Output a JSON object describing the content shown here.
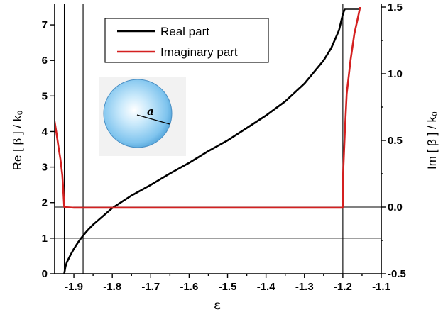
{
  "chart_data": {
    "type": "line",
    "xlabel": "ε",
    "ylabel_left": "Re [ β ] / k₀",
    "ylabel_right": "Im [ β ] / k₀",
    "xlim": [
      -1.95,
      -1.1
    ],
    "ylim_left": [
      0,
      7.5
    ],
    "ylim_right": [
      -0.5,
      1.5
    ],
    "x_ticks": [
      -1.9,
      -1.8,
      -1.7,
      -1.6,
      -1.5,
      -1.4,
      -1.3,
      -1.2,
      -1.1
    ],
    "x_tick_labels": [
      "-1.9",
      "-1.8",
      "-1.7",
      "-1.6",
      "-1.5",
      "-1.4",
      "-1.3",
      "-1.2",
      "-1.1"
    ],
    "y_left_ticks": [
      0,
      1,
      2,
      3,
      4,
      5,
      6,
      7
    ],
    "y_left_tick_labels": [
      "0",
      "1",
      "2",
      "3",
      "4",
      "5",
      "6",
      "7"
    ],
    "y_right_ticks": [
      -0.5,
      0.0,
      0.5,
      1.0,
      1.5
    ],
    "y_right_tick_labels": [
      "-0.5",
      "0.0",
      "0.5",
      "1.0",
      "1.5"
    ],
    "grid": false,
    "legend_position": "top-center",
    "series": [
      {
        "name": "Real part",
        "color": "#000000",
        "axis": "left",
        "x": [
          -1.925,
          -1.922,
          -1.918,
          -1.91,
          -1.9,
          -1.89,
          -1.88,
          -1.87,
          -1.86,
          -1.85,
          -1.8,
          -1.75,
          -1.7,
          -1.65,
          -1.6,
          -1.55,
          -1.5,
          -1.45,
          -1.4,
          -1.35,
          -1.3,
          -1.25,
          -1.23,
          -1.21,
          -1.2,
          -1.195,
          -1.16
        ],
        "y": [
          0.0,
          0.2,
          0.33,
          0.5,
          0.7,
          0.87,
          1.02,
          1.15,
          1.27,
          1.38,
          1.85,
          2.2,
          2.5,
          2.82,
          3.12,
          3.45,
          3.75,
          4.1,
          4.45,
          4.85,
          5.35,
          6.0,
          6.35,
          6.85,
          7.3,
          7.45,
          7.45
        ]
      },
      {
        "name": "Imaginary part",
        "color": "#d42020",
        "axis": "right",
        "x": [
          -1.95,
          -1.945,
          -1.94,
          -1.935,
          -1.93,
          -1.927,
          -1.925,
          -1.9,
          -1.8,
          -1.6,
          -1.4,
          -1.3,
          -1.2,
          -1.2,
          -1.195,
          -1.19,
          -1.18,
          -1.17,
          -1.16,
          -1.155
        ],
        "y": [
          0.64,
          0.55,
          0.45,
          0.36,
          0.24,
          0.1,
          0.0,
          -0.005,
          -0.005,
          -0.005,
          -0.005,
          -0.005,
          -0.005,
          0.2,
          0.55,
          0.85,
          1.1,
          1.3,
          1.43,
          1.5
        ]
      }
    ],
    "reference_lines": {
      "vertical_x": [
        -1.925,
        -1.876,
        -1.2
      ],
      "horizontal_y_left": [
        1
      ],
      "horizontal_y_right": [
        0.0
      ]
    },
    "inset": {
      "type": "sphere-diagram",
      "radius_label": "a",
      "color": "#7fc4ee"
    }
  }
}
